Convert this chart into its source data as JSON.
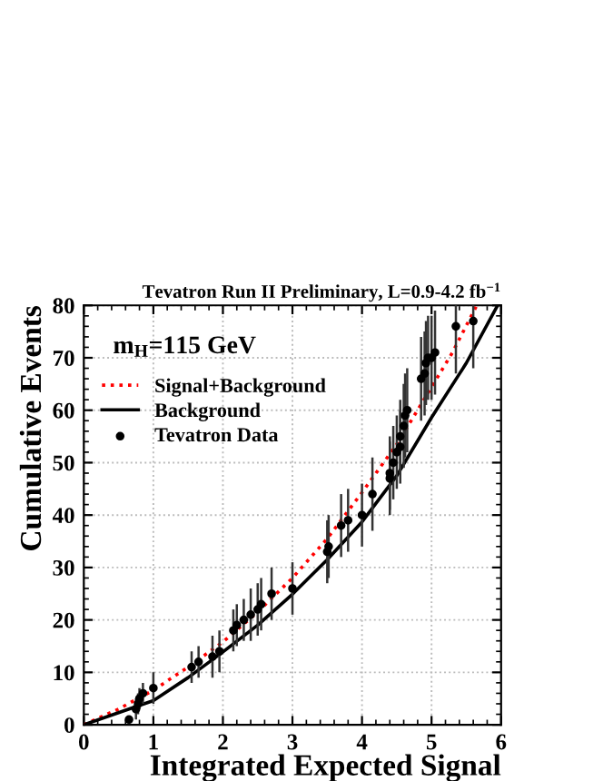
{
  "chart_data": {
    "type": "line",
    "title": "Tevatron Run II Preliminary, L=0.9-4.2 fb$^{−1}$",
    "xlabel": "Integrated Expected Signal",
    "ylabel": "Cumulative Events",
    "annotations": [
      "m$_{H}$=115 GeV"
    ],
    "xlim": [
      0,
      6
    ],
    "ylim": [
      0,
      80
    ],
    "xticks": [
      0,
      1,
      2,
      3,
      4,
      5,
      6
    ],
    "yticks": [
      0,
      10,
      20,
      30,
      40,
      50,
      60,
      70,
      80
    ],
    "grid": true,
    "legend": "top left",
    "series": [
      {
        "name": "Signal+Background",
        "color": "#ff0000",
        "line_style": "dotted",
        "marker": "none",
        "x": [
          0,
          0.5,
          1,
          1.5,
          2,
          2.5,
          3,
          3.5,
          4,
          4.5,
          5,
          5.3,
          5.65
        ],
        "values": [
          0,
          3,
          6.6,
          11,
          15.8,
          21.5,
          28,
          35.5,
          44.3,
          53.5,
          64.4,
          71,
          80
        ]
      },
      {
        "name": "Background",
        "color": "#000000",
        "line_style": "solid",
        "marker": "none",
        "x": [
          0,
          0.5,
          0.8,
          1,
          1.5,
          2,
          2.5,
          3,
          3.5,
          4,
          4.5,
          5,
          5.5,
          5.95
        ],
        "values": [
          0,
          2.3,
          3.7,
          4.6,
          9,
          13.9,
          19,
          24.9,
          31.5,
          38.7,
          47.5,
          58.6,
          69,
          80
        ]
      },
      {
        "name": "Tevatron Data",
        "type": "scatter",
        "color": "#000000",
        "marker": "circle",
        "x": [
          0.65,
          0.75,
          0.78,
          0.8,
          0.85,
          1.0,
          1.55,
          1.65,
          1.85,
          1.95,
          2.15,
          2.2,
          2.3,
          2.4,
          2.5,
          2.55,
          2.7,
          3.0,
          3.5,
          3.52,
          3.7,
          3.8,
          4.0,
          4.15,
          4.4,
          4.4,
          4.45,
          4.5,
          4.55,
          4.55,
          4.6,
          4.62,
          4.65,
          4.85,
          4.9,
          4.92,
          4.95,
          5.0,
          5.05,
          5.35,
          5.6
        ],
        "values": [
          1,
          3,
          4,
          5,
          6,
          7,
          11,
          12,
          13,
          14,
          18,
          19,
          20,
          21,
          22,
          23,
          25,
          26,
          33,
          34,
          38,
          39,
          40,
          44,
          47,
          48,
          50,
          52,
          53,
          55,
          57,
          59,
          60,
          66,
          67,
          69,
          70,
          70,
          71,
          76,
          77
        ],
        "errors": [
          null,
          2,
          2,
          2,
          2,
          3,
          3,
          3,
          4,
          4,
          4,
          4,
          4,
          5,
          5,
          5,
          5,
          5,
          6,
          6,
          6,
          6,
          6,
          7,
          7,
          7,
          7,
          7,
          7,
          7,
          8,
          8,
          8,
          8,
          8,
          8,
          8,
          8,
          8,
          9,
          9
        ]
      }
    ]
  }
}
